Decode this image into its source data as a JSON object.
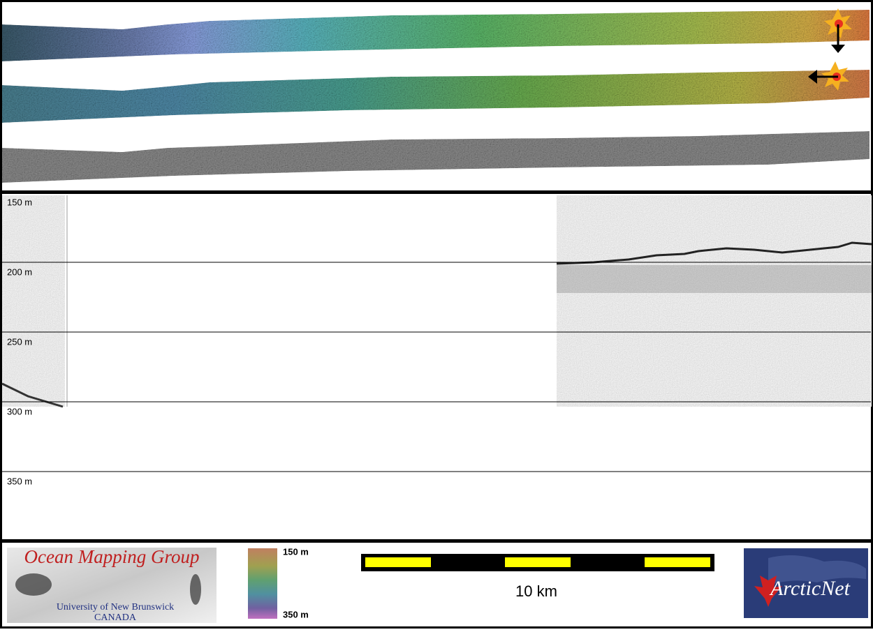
{
  "profile": {
    "depth_labels": [
      "150 m",
      "200 m",
      "250 m",
      "300 m",
      "350 m"
    ]
  },
  "footer": {
    "logo": {
      "title": "Ocean Mapping Group",
      "university": "University of New Brunswick",
      "country": "CANADA"
    },
    "colorbar": {
      "top_label": "150 m",
      "bottom_label": "350 m"
    },
    "scale_bar": {
      "label": "10 km"
    },
    "partner_logo": {
      "title": "ArcticNet"
    }
  }
}
